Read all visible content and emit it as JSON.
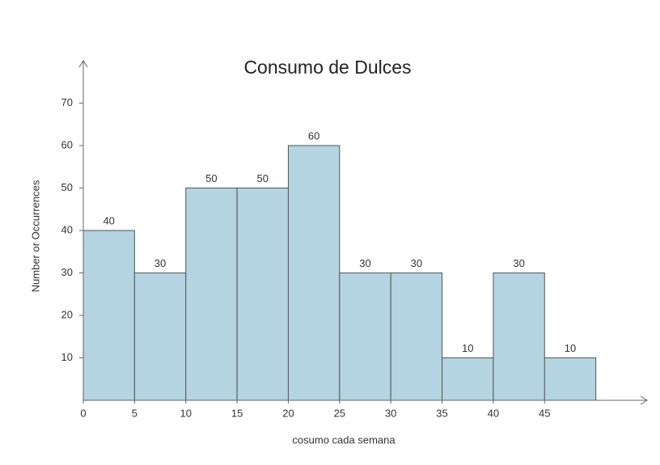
{
  "chart_data": {
    "type": "histogram",
    "title": "Consumo de Dulces",
    "xlabel": "cosumo cada semana",
    "ylabel": "Number or Occurrences",
    "bins": [
      0,
      5,
      10,
      15,
      20,
      25,
      30,
      35,
      40,
      45,
      50
    ],
    "values": [
      40,
      30,
      50,
      50,
      60,
      30,
      30,
      10,
      30,
      10
    ],
    "color": "#b3d4e0",
    "edgecolor": "#555555",
    "xlim": [
      0,
      55
    ],
    "ylim": [
      0,
      80
    ],
    "xticks": [
      0,
      5,
      10,
      15,
      20,
      25,
      30,
      35,
      40,
      45
    ],
    "yticks": [
      10,
      20,
      30,
      40,
      50,
      60,
      70
    ],
    "grid": false
  }
}
